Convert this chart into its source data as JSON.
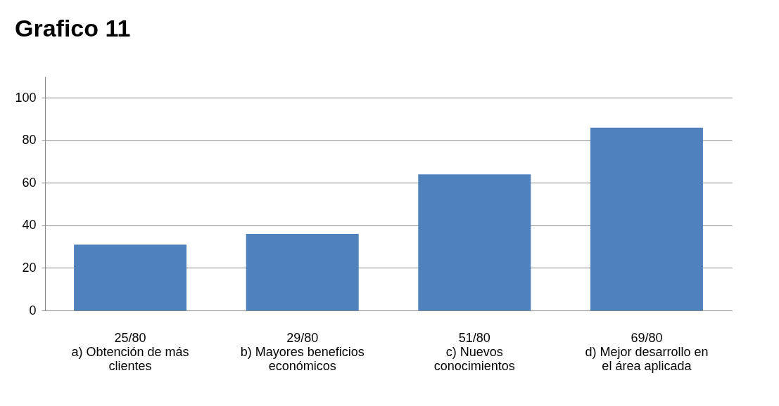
{
  "chart_data": {
    "type": "bar",
    "title": "Grafico 11",
    "categories": [
      "25/80\na) Obtención de más\nclientes",
      "29/80\nb) Mayores beneficios\neconómicos",
      "51/80\nc) Nuevos\nconocimientos",
      "69/80\nd) Mejor desarrollo en\nel área aplicada"
    ],
    "values": [
      31,
      36,
      64,
      86
    ],
    "color": "#4f81bd",
    "ylim": [
      0,
      110
    ],
    "yticks": [
      0,
      20,
      40,
      60,
      80,
      100
    ],
    "grid": "y"
  }
}
